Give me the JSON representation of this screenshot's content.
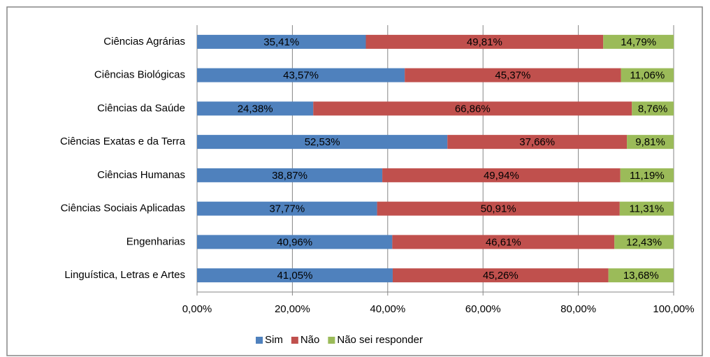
{
  "chart_data": {
    "type": "stacked-bar-horizontal",
    "categories": [
      "Ciências Agrárias",
      "Ciências Biológicas",
      "Ciências da Saúde",
      "Ciências Exatas e da Terra",
      "Ciências Humanas",
      "Ciências Sociais Aplicadas",
      "Engenharias",
      "Linguística, Letras e Artes"
    ],
    "series": [
      {
        "name": "Sim",
        "color": "#4f81bd",
        "values": [
          35.41,
          43.57,
          24.38,
          52.53,
          38.87,
          37.77,
          40.96,
          41.05
        ],
        "value_labels": [
          "35,41%",
          "43,57%",
          "24,38%",
          "52,53%",
          "38,87%",
          "37,77%",
          "40,96%",
          "41,05%"
        ]
      },
      {
        "name": "Não",
        "color": "#c0504d",
        "values": [
          49.81,
          45.37,
          66.86,
          37.66,
          49.94,
          50.91,
          46.61,
          45.26
        ],
        "value_labels": [
          "49,81%",
          "45,37%",
          "66,86%",
          "37,66%",
          "49,94%",
          "50,91%",
          "46,61%",
          "45,26%"
        ]
      },
      {
        "name": "Não sei responder",
        "color": "#9bbb59",
        "values": [
          14.79,
          11.06,
          8.76,
          9.81,
          11.19,
          11.31,
          12.43,
          13.68
        ],
        "value_labels": [
          "14,79%",
          "11,06%",
          "8,76%",
          "9,81%",
          "11,19%",
          "11,31%",
          "12,43%",
          "13,68%"
        ]
      }
    ],
    "xlim": [
      0,
      100
    ],
    "xticks": [
      {
        "value": 0,
        "label": "0,00%"
      },
      {
        "value": 20,
        "label": "20,00%"
      },
      {
        "value": 40,
        "label": "40,00%"
      },
      {
        "value": 60,
        "label": "60,00%"
      },
      {
        "value": 80,
        "label": "80,00%"
      },
      {
        "value": 100,
        "label": "100,00%"
      }
    ],
    "grid": true,
    "legend": "bottom"
  }
}
